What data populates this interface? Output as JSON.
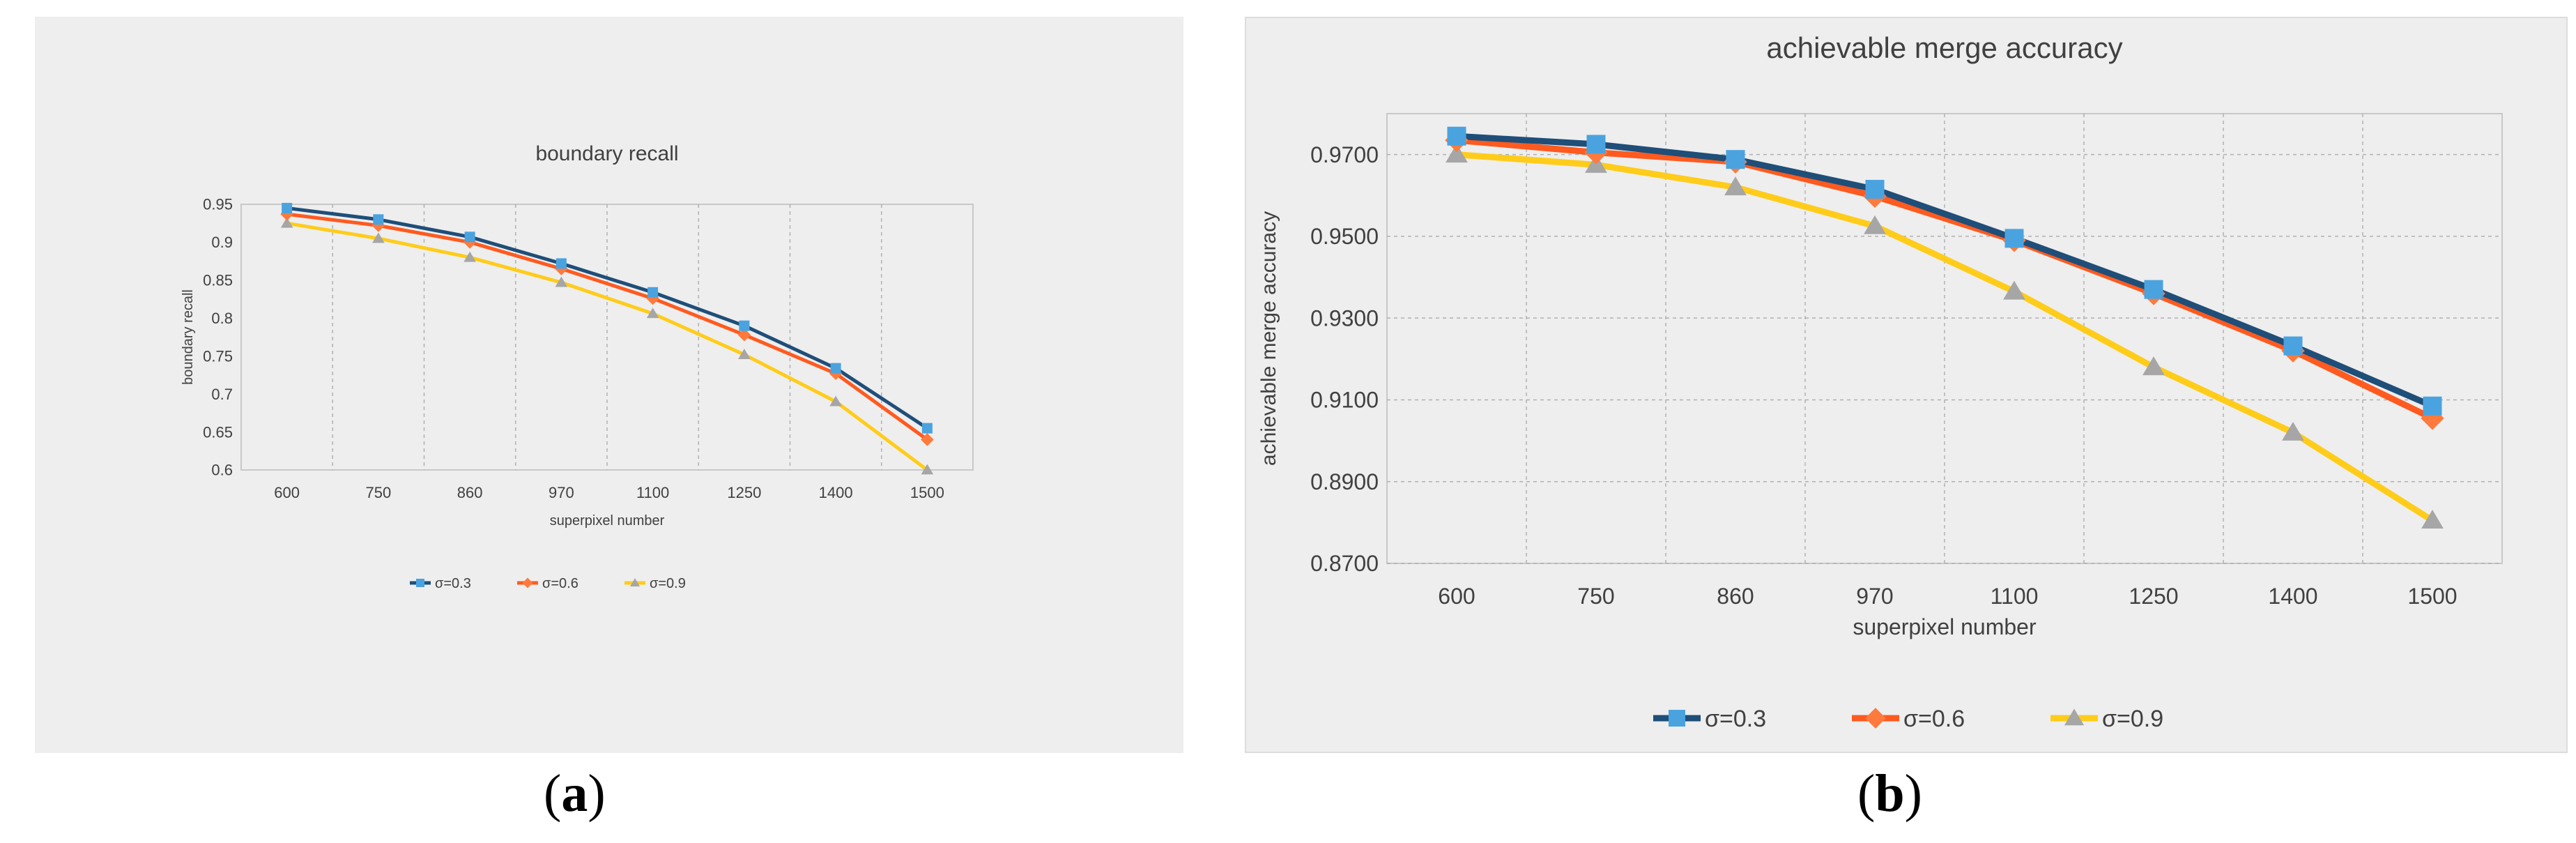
{
  "colors": {
    "s1": "#1f4e79",
    "s1_marker": "#4aa3df",
    "s2": "#ff5a1f",
    "s2_marker": "#ff7a3c",
    "s3": "#ffcc1a",
    "s3_marker": "#a6a6a6",
    "grid": "#b0b0b0",
    "text": "#404040"
  },
  "labels": {
    "a_open": "(",
    "a_letter": "a",
    "a_close": ")",
    "b_open": "(",
    "b_letter": "b",
    "b_close": ")"
  },
  "chart_data": [
    {
      "type": "line",
      "title": "boundary recall",
      "xlabel": "superpixel number",
      "ylabel": "boundary recall",
      "categories": [
        "600",
        "750",
        "860",
        "970",
        "1100",
        "1250",
        "1400",
        "1500"
      ],
      "ylim": [
        0.6,
        0.95
      ],
      "yticks": [
        0.6,
        0.65,
        0.7,
        0.75,
        0.8,
        0.85,
        0.9,
        0.95
      ],
      "ytick_labels": [
        "0.6",
        "0.65",
        "0.7",
        "0.75",
        "0.8",
        "0.85",
        "0.9",
        "0.95"
      ],
      "grid": "vertical dashed",
      "legend": "bottom",
      "series": [
        {
          "name": "σ=0.3",
          "values": [
            0.945,
            0.93,
            0.907,
            0.872,
            0.834,
            0.79,
            0.734,
            0.655
          ]
        },
        {
          "name": "σ=0.6",
          "values": [
            0.937,
            0.922,
            0.9,
            0.865,
            0.826,
            0.778,
            0.727,
            0.64
          ]
        },
        {
          "name": "σ=0.9",
          "values": [
            0.925,
            0.905,
            0.88,
            0.847,
            0.806,
            0.752,
            0.69,
            0.6
          ]
        }
      ]
    },
    {
      "type": "line",
      "title": "achievable merge accuracy",
      "xlabel": "superpixel number",
      "ylabel": "achievable merge accuracy",
      "categories": [
        "600",
        "750",
        "860",
        "970",
        "1100",
        "1250",
        "1400",
        "1500"
      ],
      "ylim": [
        0.87,
        0.98
      ],
      "yticks": [
        0.87,
        0.89,
        0.91,
        0.93,
        0.95,
        0.97
      ],
      "ytick_labels": [
        "0.8700",
        "0.8900",
        "0.9100",
        "0.9300",
        "0.9500",
        "0.9700"
      ],
      "grid": "dashed both",
      "legend": "bottom",
      "series": [
        {
          "name": "σ=0.3",
          "values": [
            0.9745,
            0.9725,
            0.9688,
            0.9615,
            0.9495,
            0.937,
            0.9232,
            0.9085
          ]
        },
        {
          "name": "σ=0.6",
          "values": [
            0.9735,
            0.9705,
            0.9682,
            0.9598,
            0.949,
            0.936,
            0.922,
            0.9055
          ]
        },
        {
          "name": "σ=0.9",
          "values": [
            0.97,
            0.9675,
            0.962,
            0.9525,
            0.9365,
            0.918,
            0.902,
            0.8805
          ]
        }
      ]
    }
  ]
}
